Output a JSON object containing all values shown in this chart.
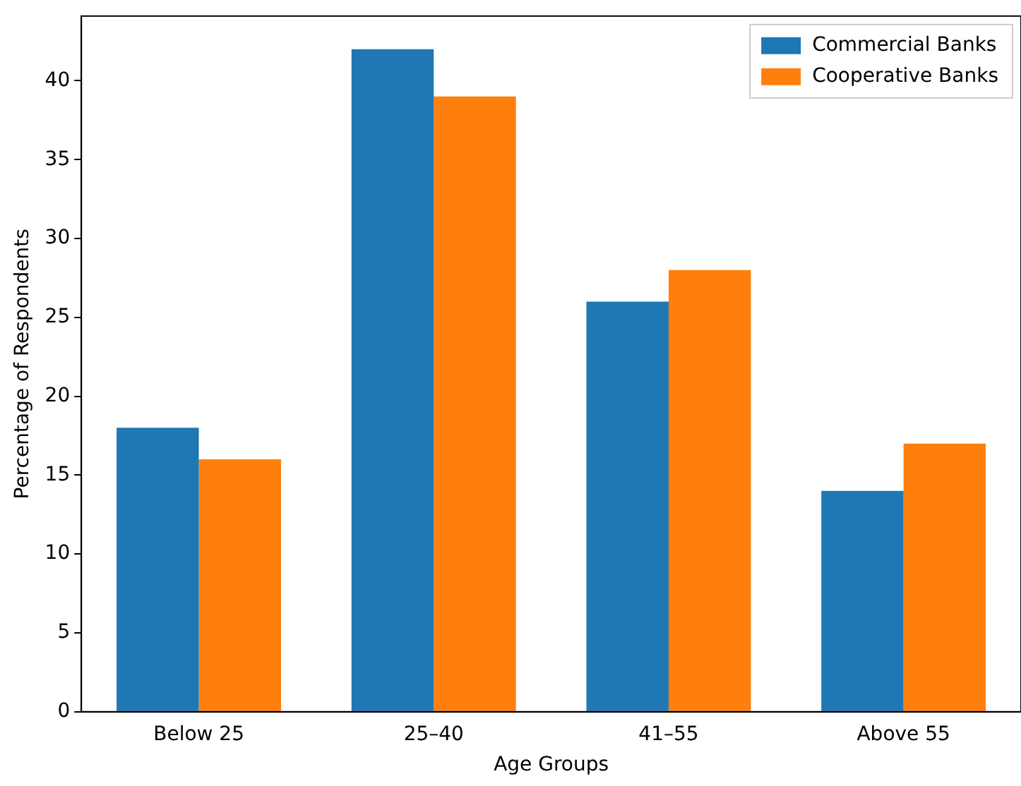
{
  "chart_data": {
    "type": "bar",
    "xlabel": "Age Groups",
    "ylabel": "Percentage of Respondents",
    "categories": [
      "Below 25",
      "25–40",
      "41–55",
      "Above 55"
    ],
    "series": [
      {
        "name": "Commercial Banks",
        "color": "#1f77b4",
        "values": [
          18,
          42,
          26,
          14
        ]
      },
      {
        "name": "Cooperative Banks",
        "color": "#ff7f0e",
        "values": [
          16,
          39,
          28,
          17
        ]
      }
    ],
    "ylim": [
      0,
      44.1
    ],
    "yticks": [
      0,
      5,
      10,
      15,
      20,
      25,
      30,
      35,
      40
    ],
    "grid": false,
    "legend": "top right"
  }
}
